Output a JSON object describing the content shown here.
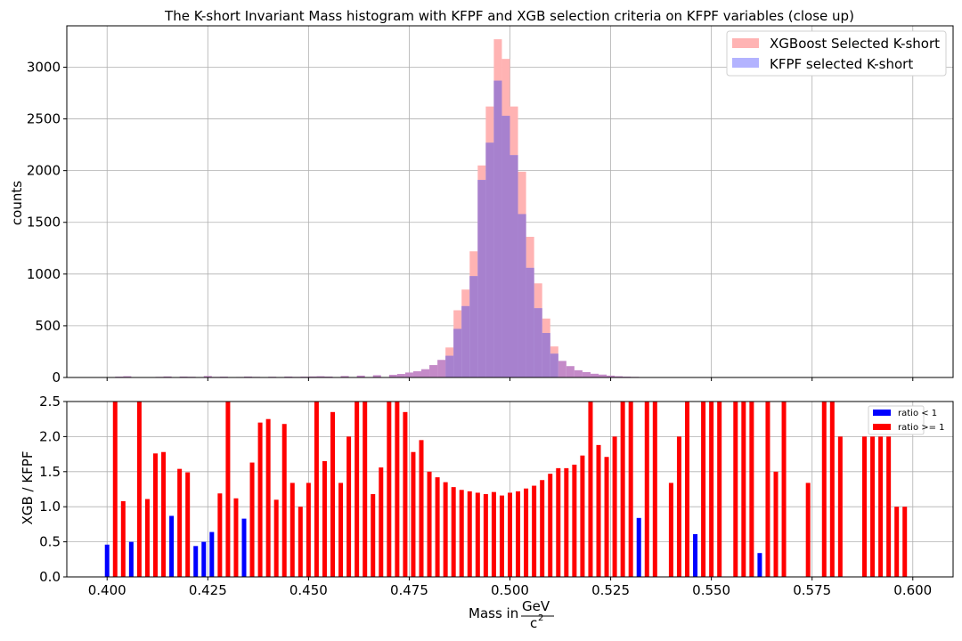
{
  "chart_data": [
    {
      "type": "histogram",
      "title": "The K-short Invariant Mass histogram with KFPF and XGB selection criteria on KFPF variables (close up)",
      "xlabel": "",
      "ylabel": "counts",
      "xlim": [
        0.39,
        0.61
      ],
      "ylim": [
        0,
        3400
      ],
      "x_ticks": [
        0.4,
        0.425,
        0.45,
        0.475,
        0.5,
        0.525,
        0.55,
        0.575,
        0.6
      ],
      "y_ticks": [
        0,
        500,
        1000,
        1500,
        2000,
        2500,
        3000
      ],
      "grid": true,
      "legend_position": "top-right",
      "bin_edges": [
        0.484,
        0.486,
        0.488,
        0.49,
        0.492,
        0.494,
        0.496,
        0.498,
        0.5,
        0.502,
        0.504,
        0.506,
        0.508,
        0.51,
        0.512
      ],
      "series": [
        {
          "name": "XGBoost Selected K-short",
          "color": "#ffb3b3",
          "values": [
            290,
            650,
            850,
            1220,
            2050,
            2620,
            3270,
            3080,
            2620,
            1990,
            1360,
            910,
            570,
            300
          ]
        },
        {
          "name": "KFPF selected K-short",
          "color": "#b3b3ff",
          "values": [
            210,
            470,
            690,
            980,
            1910,
            2270,
            2870,
            2530,
            2150,
            1580,
            1060,
            670,
            430,
            230
          ]
        }
      ],
      "low_count_note": "sparse tails of small counts (under ~100) on both sides of the peak"
    },
    {
      "type": "bar",
      "title": "",
      "xlabel": "Mass in GeV/c²",
      "ylabel": "XGB / KFPF",
      "xlim": [
        0.39,
        0.61
      ],
      "ylim": [
        0,
        2.5
      ],
      "x_ticks": [
        0.4,
        0.425,
        0.45,
        0.475,
        0.5,
        0.525,
        0.55,
        0.575,
        0.6
      ],
      "y_ticks": [
        0.0,
        0.5,
        1.0,
        1.5,
        2.0,
        2.5
      ],
      "grid": true,
      "legend_position": "top-right",
      "series": [
        {
          "name": "ratio < 1",
          "color": "#0000ff"
        },
        {
          "name": "ratio >= 1",
          "color": "#ff0000"
        }
      ],
      "x": [
        0.4,
        0.402,
        0.404,
        0.406,
        0.408,
        0.41,
        0.412,
        0.414,
        0.416,
        0.418,
        0.42,
        0.422,
        0.424,
        0.426,
        0.428,
        0.43,
        0.432,
        0.434,
        0.436,
        0.438,
        0.44,
        0.442,
        0.444,
        0.446,
        0.448,
        0.45,
        0.452,
        0.454,
        0.456,
        0.458,
        0.46,
        0.462,
        0.464,
        0.466,
        0.468,
        0.47,
        0.472,
        0.474,
        0.476,
        0.478,
        0.48,
        0.482,
        0.484,
        0.486,
        0.488,
        0.49,
        0.492,
        0.494,
        0.496,
        0.498,
        0.5,
        0.502,
        0.504,
        0.506,
        0.508,
        0.51,
        0.512,
        0.514,
        0.516,
        0.518,
        0.52,
        0.522,
        0.524,
        0.526,
        0.528,
        0.53,
        0.532,
        0.534,
        0.536,
        0.538,
        0.54,
        0.542,
        0.544,
        0.546,
        0.548,
        0.55,
        0.552,
        0.554,
        0.556,
        0.558,
        0.56,
        0.562,
        0.564,
        0.566,
        0.568,
        0.57,
        0.572,
        0.574,
        0.576,
        0.578,
        0.58,
        0.582,
        0.584,
        0.586,
        0.588,
        0.59,
        0.592,
        0.594,
        0.596,
        0.598
      ],
      "values": [
        0.46,
        2.5,
        1.08,
        0.5,
        2.5,
        1.11,
        1.76,
        1.78,
        0.87,
        1.54,
        1.49,
        0.44,
        0.5,
        0.64,
        1.19,
        2.5,
        1.12,
        0.83,
        1.63,
        2.2,
        2.25,
        1.1,
        2.18,
        1.34,
        1.0,
        1.34,
        2.5,
        1.65,
        2.35,
        1.34,
        2.0,
        2.5,
        2.5,
        1.18,
        1.56,
        2.5,
        2.5,
        2.35,
        1.78,
        1.95,
        1.5,
        1.42,
        1.35,
        1.28,
        1.24,
        1.22,
        1.2,
        1.18,
        1.21,
        1.16,
        1.2,
        1.22,
        1.26,
        1.3,
        1.38,
        1.47,
        1.55,
        1.55,
        1.6,
        1.73,
        2.5,
        1.88,
        1.71,
        2.0,
        2.5,
        2.5,
        0.84,
        2.5,
        2.5,
        0,
        1.34,
        2.0,
        2.5,
        0.61,
        2.5,
        2.5,
        2.5,
        0,
        2.5,
        2.5,
        2.5,
        0.34,
        2.5,
        1.5,
        2.5,
        0,
        0,
        1.34,
        0,
        2.5,
        2.5,
        2.0,
        0,
        0,
        2.0,
        2.0,
        2.0,
        2.0,
        1.0,
        1.0
      ]
    }
  ]
}
